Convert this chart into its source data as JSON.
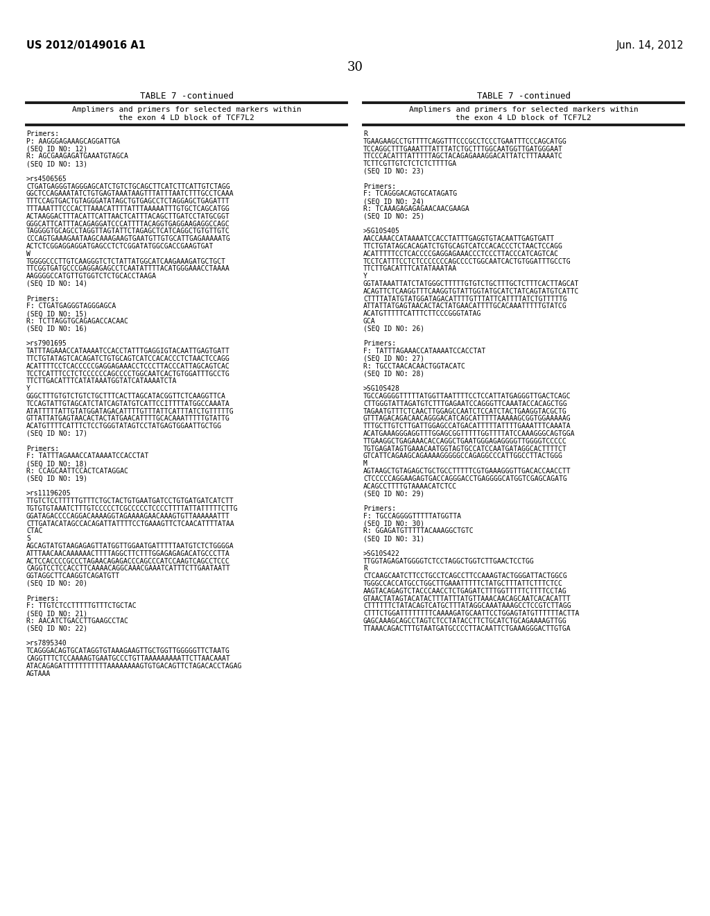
{
  "header_left": "US 2012/0149016 A1",
  "header_right": "Jun. 14, 2012",
  "page_number": "30",
  "table_title": "TABLE 7 -continued",
  "col1_content": [
    "Primers:",
    "P: AAGGGAGAAAGCAGGATTGA",
    "(SEQ ID NO: 12)",
    "R: AGCGAAGAGATGAAATGTAGCA",
    "(SEQ ID NO: 13)",
    "",
    ">rs4506565",
    "CTGATGAGGGTAGGGAGCATCTGTCTGCAGCTTCATCTTCATTGTCTAGG",
    "GGCTCCAGAAATATCTGTGAGTAAATAAGTTTATTTAATCTTTGCCTCAAA",
    "TTTCCAGTGACTGTAGGGATATAGCTGTGAGCCTCTAGGAGCTGAGATTT",
    "TTTAAATTTCCCACTTAAACATTTTATTTAAAAATTTGTGCTCAGCATGG",
    "ACTAAGGACTTTACATTCATTAACTCATTTACAGCTTGATCCTATGCGGT",
    "GGGCATTCATTTACAGAGGATCCCATTTTACAGGTGAGGAAGAGGCCAGC",
    "TAGGGGTGCAGCCTAGGTTAGTATTCTAGAGCTCATCAGGCTGTGTTGTC",
    "CCCAGTGAAAGAATAAGCAAAGAAGTGAATGTTGTGCATTGAGAAAAATG",
    "ACTCTCGGAGGAGGATGAGCCTCTCGGATATGGCGACCGAAGTGAT",
    "W",
    "TGGGGCCCTTGTCAAGGGTCTCTATTATGGCATCAAGAAAGATGCTGCT",
    "TTCGGTGATGCCCGAGGAGAGCCTCAATATTTTACATGGGAAACCTAAAA",
    "AAGGGGCCATGTTGTGGTCTCTGCACCTAAGA",
    "(SEQ ID NO: 14)",
    "",
    "Primers:",
    "F: CTGATGAGGGTAGGGAGCA",
    "(SEQ ID NO: 15)",
    "R: TCTTAGGTGCAGAGACCACAAC",
    "(SEQ ID NO: 16)",
    "",
    ">rs7901695",
    "TATTTAGAAACCATAAAATCCACCTATTTGAGGIGTACAATTGAGTGATT",
    "TTCTGTATAGTCACAGATCTGTGCAGTCATCCACACCCTCTAACTCCAGG",
    "ACATTTTCCTCACCCCCGAGGAGAAACCTCCCTTACCCATTAGCAGTCAC",
    "TCCTCATTTCCTCTCCCCCCAGCCCCTGGCAATCACTGTGGATTTGCCTG",
    "TTCTTGACATTTCATATAAATGGTATCATAAAATCTA",
    "Y",
    "GGGCTTTGTGTCTGTCTGCTTTCACTTAGCATACGGTTCTCAAGGTTCA",
    "TCCAGTATTGTAGCATCTATCAGTATGTCATTCCITTTTATGGCCAAATA",
    "ATATTTTTATTGTATGGATAGACATTTTGTTTATTCATTTATCTGTTTTTG",
    "GTTATTATGAGTAACACTACTATGAACATTTTGCACAAATTTTTGTATTG",
    "ACATGTTTTCATTTCTCCTGGGTATAGTCCTATGAGTGGAATTGCTGG",
    "(SEQ ID NO: 17)",
    "",
    "Primers:",
    "F: TATTTAGAAACCATAAAATCCACCTAT",
    "(SEQ ID NO: 18)",
    "R: CCAGCAATTCCACTCATAGGAC",
    "(SEQ ID NO: 19)",
    "",
    ">rs11196205",
    "TTGTCTCCTTTTTGTTTCTGCTACTGTGAATGATCCTGTGATGATCATCTT",
    "TGTGTGTAAATCTTTGTCCCCCTCGCCCCCTCCCCTTTTATTATTTTTCTTG",
    "GGATAGACCCCAGGACAAAAGGTAGAAAAGAACAAAGTGTTAAAAAATTT",
    "CTTGATACATAGCCACAGATTATTTTCCTGAAAGTTCTCAACATTTTATAA",
    "CTAC",
    "S",
    "AGCAGTATGTAAGAGAGTTATGGTTGGAATGATTTTTAATGTCTCTGGGGA",
    "ATTTAACAACAAAAAACTTTTAGGCTTCTTTGGAGAGAGACATGCCCTTA",
    "ACTCCACCCCGCCCTAGAACAGAGACCCAGCCCATCCAAGTCAGCCTCCC",
    "CAGGTCCTCCACCTTCAAAACAGGCAAACGAAATCATTTCTTGAATAATT",
    "GGTAGGCTTCAAGGTCAGATGTT",
    "(SEQ ID NO: 20)",
    "",
    "Primers:",
    "F: TTGTCTCCTTTTTGTTTCTGCTAC",
    "(SEQ ID NO: 21)",
    "R: AACATCTGACCTTGAAGCCTAC",
    "(SEQ ID NO: 22)",
    "",
    ">rs7895340",
    "TCAGGGACAGTGCATAGGTGTAAAGAAGTTGCTGGTTGGGGGTTCTAATG",
    "CAGGTTTCTCCAAAAGTGAATGCCCTGTTAAAAAAAAATTCTTAACAAAT",
    "ATACAGAGATTTTTTTTTTTAAAAAAAAGTGTGACAGTTCTAGACACCTAGAG",
    "AGTAAA"
  ],
  "col2_content": [
    "R",
    "TGAAGAAGCCTGTTTTCAGGTTTCCCGCCTCCCTGAATTTCCCAGCATGG",
    "TCCAGGCTTTGAAATTTATTTATCTGCTTTGGCAATGGTTGATGGGAAT",
    "TTCCCACATTTATTTTTAGCTACAGAGAAAGGACATTATCTTTAAAATC",
    "TCTTCGTTGTCTCTCTCTTTTGA",
    "(SEQ ID NO: 23)",
    "",
    "Primers:",
    "F: TCAGGGACAGTGCATAGATG",
    "(SEQ ID NO: 24)",
    "R: TCAAAGAGAGAGAACAACGAAGA",
    "(SEQ ID NO: 25)",
    "",
    ">SG10S405",
    "AACCAAACCATAAAATCCACCTATTTGAGGTGTACAATTGAGTGATT",
    "TTCTGTATAGCACAGATCTGTGCAGTCATCCACACCCTCTAACTCCAGG",
    "ACATTTTTCCTCACCCCGAGGAGAAACCCTCCCTTACCCATCAGTCAC",
    "TCCTCATTTCCTCTCCCCCCCAGCCCCTGGCAATCACTGTGGATTTGCCTG",
    "TTCTTGACATTTCATATAAATAA",
    "Y",
    "GGTATAAATTATCTATGGGCTTTTTGTGTCTGCTTTGCTCTTTCACTTAGCAT",
    "ACAGTTCTCAAGGTTTCAAGGTGTATTGGTATGCATCTATCAGTATGTCATTC",
    "CTTTTATATGTATGGATAGACATTTTGTTTATTCATTTTATCTGTTTTTG",
    "ATTATTATGAGTAACACTACTATGAACATTTTGCACAAATTTTTGTATCG",
    "ACATGTTTTTCATTTCTTCCCGGGTATAG",
    "GCA",
    "(SEQ ID NO: 26)",
    "",
    "Primers:",
    "F: TATTTAGAAACCATAAAATCCACCTAT",
    "(SEQ ID NO: 27)",
    "R: TGCCTAACACAACTGGTACATC",
    "(SEQ ID NO: 28)",
    "",
    ">SG10S428",
    "TGCCAGGGGTTTTTATGGTTAATTTTCCTCCATTATGAGGGTTGACTCAGC",
    "CTTGGGTATTAGATGTCTTTGAGAATCCAGGGTTCAAATACCACAGCTGG",
    "TAGAATGTTTCTCAACTTGGAGCCAATCTCCATCTACTGAAGGTACGCTG",
    "GTTTAGACAGACAACAGGGACATCAGCATTTTTAAAAAGCGGTGGAAAAAG",
    "TTTGCTTGTCTTGATTGGAGCCATGACATTTTTATTTTGAAATTTCAAATA",
    "ACATGAAAGGGAGGTTTGGAGCGGTTTTTGGTTTTATCCAAAGGGCAGTGGA",
    "TTGAAGGCTGAGAAACACCAGGCTGAATGGGAGAGGGGTTGGGGTCCCCC",
    "TGTGAGATAGTGAAACAATGGTAGTGCCATCCAATGATAGGCACTTTTCT",
    "GTCATTCAGAAGCAGAAAAGGGGGCCAGAGGCCCATTGGCCTTACTGGG",
    "M",
    "AGTAAGCTGTAGAGCTGCTGCCTTTTTCGTGAAAGGGTTGACACCAACCTT",
    "CTCCCCCAGGAAGAGTGACCAGGGACCTGAGGGGCATGGTCGAGCAGATG",
    "ACAGCCTTTTGTAAAACATCTCC",
    "(SEQ ID NO: 29)",
    "",
    "Primers:",
    "F: TGCCAGGGGTTTTTATGGTTA",
    "(SEQ ID NO: 30)",
    "R: GGAGATGTTTTTACAAAGGCTGTC",
    "(SEQ ID NO: 31)",
    "",
    ">SG10S422",
    "TTGGTAGAGATGGGGTCTCCTAGGCTGGTCTTGAACTCCTGG",
    "R",
    "CTCAAGCAATCTTCCTGCCTCAGCCTTCCAAAGTACTGGGATTACTGGCG",
    "TGGGCCACCATGCCTGGCTTGAAATTTTTCTATGCTTTATTCTTTCTCC",
    "AAGTACAGAGTCTACCCAACCTCTGAGATCTTTGGTTTTTCTTTTCCTAG",
    "GTAACTATAGTACATACTTTATTTATGTTAAACAACAGCAATCACACATTT",
    "CTTTTTTCTATACAGTCATGCTTTATAGGCAAATAAAGCCTCCGTCTTAGG",
    "CTTTCTGGATTTTTTTTCAAAAGATGCAATTCCTGGAGTATGTTTTTTACTTA",
    "GAGCAAAGCAGCCTAGTCTCCTATACCTTCTGCATCTGCAGAAAAGTTGG",
    "TTAAACAGACTTTGTAATGATGCCCCTTACAATTCTGAAAGGGACTTGTGA"
  ],
  "background_color": "#ffffff",
  "text_color": "#000000"
}
